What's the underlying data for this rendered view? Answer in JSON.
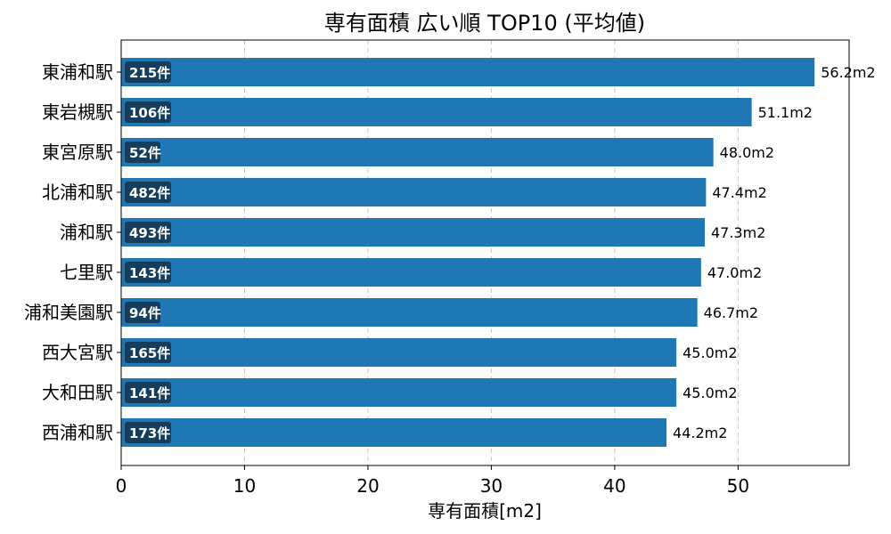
{
  "chart_data": {
    "type": "bar",
    "orientation": "horizontal",
    "title": "専有面積 広い順 TOP10 (平均値)",
    "xlabel": "専有面積[m2]",
    "ylabel": "",
    "xlim": [
      0,
      59.0
    ],
    "xticks": [
      0,
      10,
      20,
      30,
      40,
      50
    ],
    "grid": "x-dashed",
    "categories": [
      "東浦和駅",
      "東岩槻駅",
      "東宮原駅",
      "北浦和駅",
      "浦和駅",
      "七里駅",
      "浦和美園駅",
      "西大宮駅",
      "大和田駅",
      "西浦和駅"
    ],
    "values": [
      56.2,
      51.1,
      48.0,
      47.4,
      47.3,
      47.0,
      46.7,
      45.0,
      45.0,
      44.2
    ],
    "value_labels": [
      "56.2m2",
      "51.1m2",
      "48.0m2",
      "47.4m2",
      "47.3m2",
      "47.0m2",
      "46.7m2",
      "45.0m2",
      "45.0m2",
      "44.2m2"
    ],
    "counts": [
      "215件",
      "106件",
      "52件",
      "482件",
      "493件",
      "143件",
      "94件",
      "165件",
      "141件",
      "173件"
    ],
    "colors": {
      "bar": "#1f77b4",
      "count_badge": "#163d5c",
      "grid": "#c8c8c8"
    }
  }
}
